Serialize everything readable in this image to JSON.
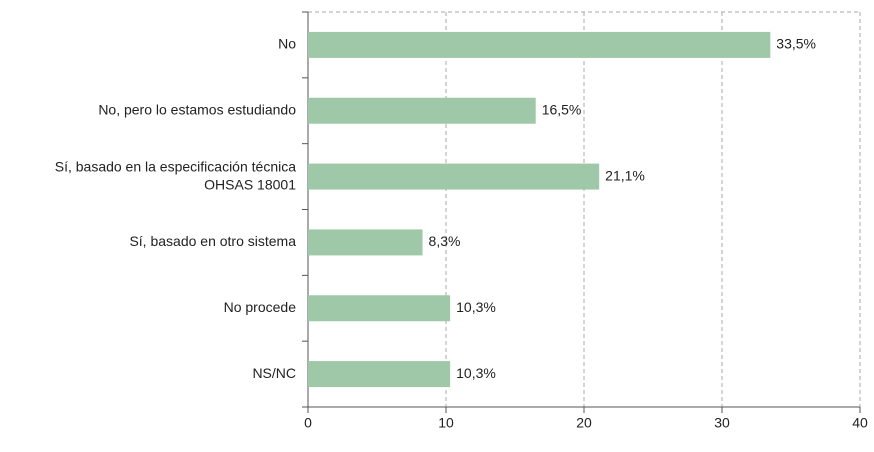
{
  "chart_data": {
    "type": "bar",
    "orientation": "horizontal",
    "categories": [
      "No",
      "No, pero lo estamos estudiando",
      "Sí, basado en la especificación técnica\nOHSAS 18001",
      "Sí, basado en otro sistema",
      "No procede",
      "NS/NC"
    ],
    "values": [
      33.5,
      16.5,
      21.1,
      8.3,
      10.3,
      10.3
    ],
    "value_labels": [
      "33,5%",
      "16,5%",
      "21,1%",
      "8,3%",
      "10,3%",
      "10,3%"
    ],
    "color": "#9fc8a8",
    "xlim": [
      0,
      40
    ],
    "xticks": [
      0,
      10,
      20,
      30,
      40
    ],
    "grid": true
  }
}
